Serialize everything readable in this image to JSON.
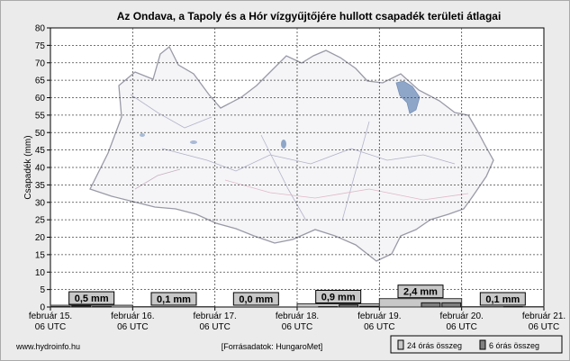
{
  "chart_data": {
    "type": "bar",
    "title": "Az Ondava, a Tapoly és a Hór vízgyűjtőjére hullott csapadék területi átlagai",
    "ylabel": "Csapadék (mm)",
    "ylim": [
      0,
      80
    ],
    "yticks": [
      0,
      5,
      10,
      15,
      20,
      25,
      30,
      35,
      40,
      45,
      50,
      55,
      60,
      65,
      70,
      75,
      80
    ],
    "grid": true,
    "x_ticks": [
      {
        "line1": "február 15.",
        "line2": "06 UTC"
      },
      {
        "line1": "február 16.",
        "line2": "06 UTC"
      },
      {
        "line1": "február 17.",
        "line2": "06 UTC"
      },
      {
        "line1": "február 18.",
        "line2": "06 UTC"
      },
      {
        "line1": "február 19.",
        "line2": "06 UTC"
      },
      {
        "line1": "február 20.",
        "line2": "06 UTC"
      },
      {
        "line1": "február 21.",
        "line2": "06 UTC"
      }
    ],
    "daily_totals": [
      {
        "label": "0,5 mm",
        "value": 0.5
      },
      {
        "label": "0,1 mm",
        "value": 0.1
      },
      {
        "label": "0,0 mm",
        "value": 0.0
      },
      {
        "label": "0,9 mm",
        "value": 0.9
      },
      {
        "label": "2,4 mm",
        "value": 2.4
      },
      {
        "label": "0,1 mm",
        "value": 0.1
      }
    ],
    "series": [
      {
        "name": "24 órás összeg",
        "values": [
          0.5,
          0.1,
          0.0,
          0.9,
          2.4,
          0.1
        ],
        "color": "#c8c8c8"
      },
      {
        "name": "6 órás összeg",
        "values": [
          0.1,
          0.3,
          0.1,
          0.0,
          0.0,
          0.0,
          0.0,
          0.0,
          0.0,
          0.0,
          0.0,
          0.0,
          0.0,
          0.1,
          0.6,
          0.2,
          0.0,
          0.0,
          1.2,
          1.2,
          0.0,
          0.0,
          0.1,
          0.0
        ],
        "color": "#808080"
      }
    ],
    "legend_position": "bottom-right"
  },
  "footer": {
    "source_left": "www.hydroinfo.hu",
    "source_center": "[Forrásadatok: HungaroMet]"
  }
}
